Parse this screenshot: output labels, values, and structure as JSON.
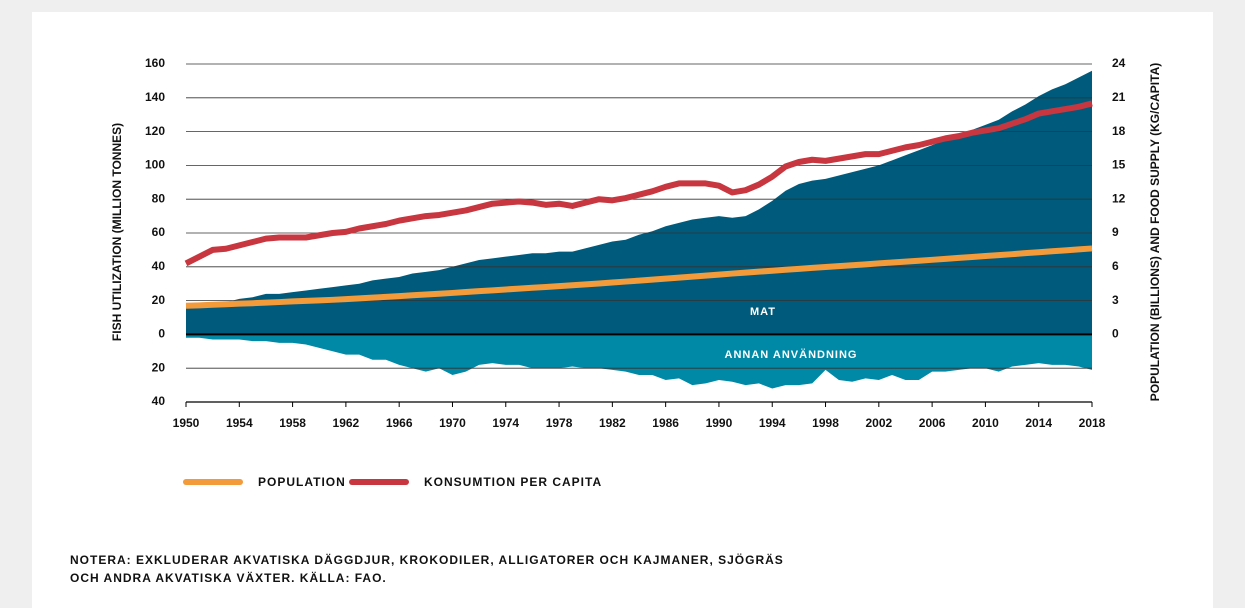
{
  "chart_data": {
    "type": "area",
    "y_label": "FISH UTILIZATION (MILLION TONNES)",
    "y2_label": "POPULATION (BILLIONS) AND FOOD SUPPLY (KG/CAPITA)",
    "note": [
      "NOTERA: EXKLUDERAR AKVATISKA DÄGGDJUR, KROKODILER, ALLIGATORER OCH KAJMANER, SJÖGRÄS",
      "OCH ANDRA AKVATISKA VÄXTER. KÄLLA: FAO."
    ],
    "x": [
      1950,
      1951,
      1952,
      1953,
      1954,
      1955,
      1956,
      1957,
      1958,
      1959,
      1960,
      1961,
      1962,
      1963,
      1964,
      1965,
      1966,
      1967,
      1968,
      1969,
      1970,
      1971,
      1972,
      1973,
      1974,
      1975,
      1976,
      1977,
      1978,
      1979,
      1980,
      1981,
      1982,
      1983,
      1984,
      1985,
      1986,
      1987,
      1988,
      1989,
      1990,
      1991,
      1992,
      1993,
      1994,
      1995,
      1996,
      1997,
      1998,
      1999,
      2000,
      2001,
      2002,
      2003,
      2004,
      2005,
      2006,
      2007,
      2008,
      2009,
      2010,
      2011,
      2012,
      2013,
      2014,
      2015,
      2016,
      2017,
      2018
    ],
    "xlim": [
      1950,
      2018
    ],
    "xticks": [
      1950,
      1954,
      1958,
      1962,
      1966,
      1970,
      1974,
      1978,
      1982,
      1986,
      1990,
      1994,
      1998,
      2002,
      2006,
      2010,
      2014,
      2018
    ],
    "ylim": [
      -40,
      160
    ],
    "yticks": [
      {
        "value": -40,
        "label": "40"
      },
      {
        "value": -20,
        "label": "20"
      },
      0,
      20,
      40,
      60,
      80,
      100,
      120,
      140,
      160
    ],
    "y2lim": [
      -6,
      24
    ],
    "y2ticks": [
      0,
      3,
      6,
      9,
      12,
      15,
      18,
      21,
      24
    ],
    "grid": true,
    "series": [
      {
        "name": "MAT",
        "type": "area",
        "color": "#005a7b",
        "values": [
          18,
          18,
          19,
          19,
          21,
          22,
          24,
          24,
          25,
          26,
          27,
          28,
          29,
          30,
          32,
          33,
          34,
          36,
          37,
          38,
          40,
          42,
          44,
          45,
          46,
          47,
          48,
          48,
          49,
          49,
          51,
          53,
          55,
          56,
          59,
          61,
          64,
          66,
          68,
          69,
          70,
          69,
          70,
          74,
          79,
          85,
          89,
          91,
          92,
          94,
          96,
          98,
          100,
          103,
          106,
          109,
          112,
          115,
          118,
          121,
          124,
          127,
          132,
          136,
          141,
          145,
          148,
          152,
          156
        ]
      },
      {
        "name": "ANNAN ANVÄNDNING",
        "type": "area",
        "color": "#0089a6",
        "values": [
          -2,
          -2,
          -3,
          -3,
          -3,
          -4,
          -4,
          -5,
          -5,
          -6,
          -8,
          -10,
          -12,
          -12,
          -15,
          -15,
          -18,
          -20,
          -22,
          -20,
          -24,
          -22,
          -18,
          -17,
          -18,
          -18,
          -20,
          -20,
          -20,
          -19,
          -20,
          -20,
          -21,
          -22,
          -24,
          -24,
          -27,
          -26,
          -30,
          -29,
          -27,
          -28,
          -30,
          -29,
          -32,
          -30,
          -30,
          -29,
          -21,
          -27,
          -28,
          -26,
          -27,
          -24,
          -27,
          -27,
          -22,
          -22,
          -21,
          -20,
          -20,
          -22,
          -19,
          -18,
          -17,
          -18,
          -18,
          -19,
          -21
        ]
      },
      {
        "name": "POPULATION",
        "type": "line",
        "axis": "y2",
        "color": "#f39a3b",
        "values": [
          2.54,
          2.58,
          2.63,
          2.68,
          2.73,
          2.77,
          2.82,
          2.87,
          2.93,
          2.98,
          3.02,
          3.07,
          3.13,
          3.2,
          3.26,
          3.33,
          3.4,
          3.47,
          3.54,
          3.61,
          3.68,
          3.76,
          3.84,
          3.91,
          3.99,
          4.06,
          4.14,
          4.21,
          4.28,
          4.36,
          4.44,
          4.52,
          4.61,
          4.69,
          4.77,
          4.86,
          4.95,
          5.04,
          5.13,
          5.22,
          5.31,
          5.4,
          5.48,
          5.57,
          5.65,
          5.74,
          5.82,
          5.9,
          5.98,
          6.06,
          6.14,
          6.22,
          6.3,
          6.38,
          6.46,
          6.54,
          6.62,
          6.7,
          6.79,
          6.87,
          6.96,
          7.04,
          7.12,
          7.21,
          7.29,
          7.38,
          7.46,
          7.55,
          7.63
        ]
      },
      {
        "name": "KONSUMTION PER CAPITA",
        "type": "line",
        "axis": "y2",
        "color": "#c8363f",
        "values": [
          6.3,
          6.9,
          7.5,
          7.6,
          7.9,
          8.2,
          8.5,
          8.6,
          8.6,
          8.6,
          8.8,
          9.0,
          9.1,
          9.4,
          9.6,
          9.8,
          10.1,
          10.3,
          10.5,
          10.6,
          10.8,
          11.0,
          11.3,
          11.6,
          11.7,
          11.8,
          11.7,
          11.5,
          11.6,
          11.4,
          11.7,
          12.0,
          11.9,
          12.1,
          12.4,
          12.7,
          13.1,
          13.4,
          13.4,
          13.4,
          13.2,
          12.6,
          12.8,
          13.3,
          14.0,
          14.9,
          15.3,
          15.5,
          15.4,
          15.6,
          15.8,
          16.0,
          16.0,
          16.3,
          16.6,
          16.8,
          17.1,
          17.4,
          17.6,
          17.9,
          18.1,
          18.3,
          18.7,
          19.1,
          19.6,
          19.8,
          20.0,
          20.2,
          20.5
        ]
      }
    ]
  }
}
